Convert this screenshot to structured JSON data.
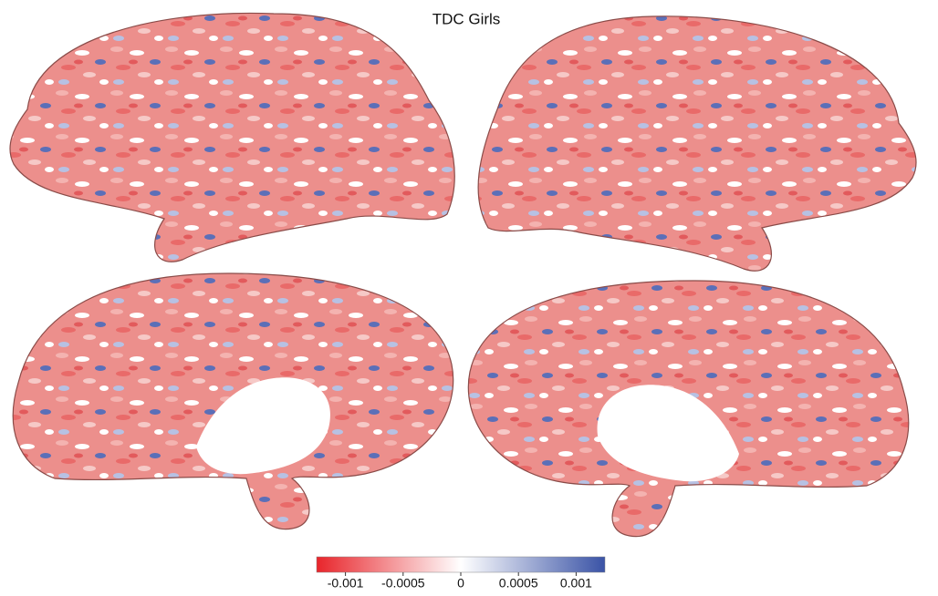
{
  "title": "TDC Girls",
  "colorbar": {
    "lim": [
      -0.00125,
      0.00125
    ],
    "ticks": [
      -0.001,
      -0.0005,
      0,
      0.0005,
      0.001
    ],
    "colors": [
      "#e8252b",
      "#ffffff",
      "#3a53a6"
    ]
  }
}
